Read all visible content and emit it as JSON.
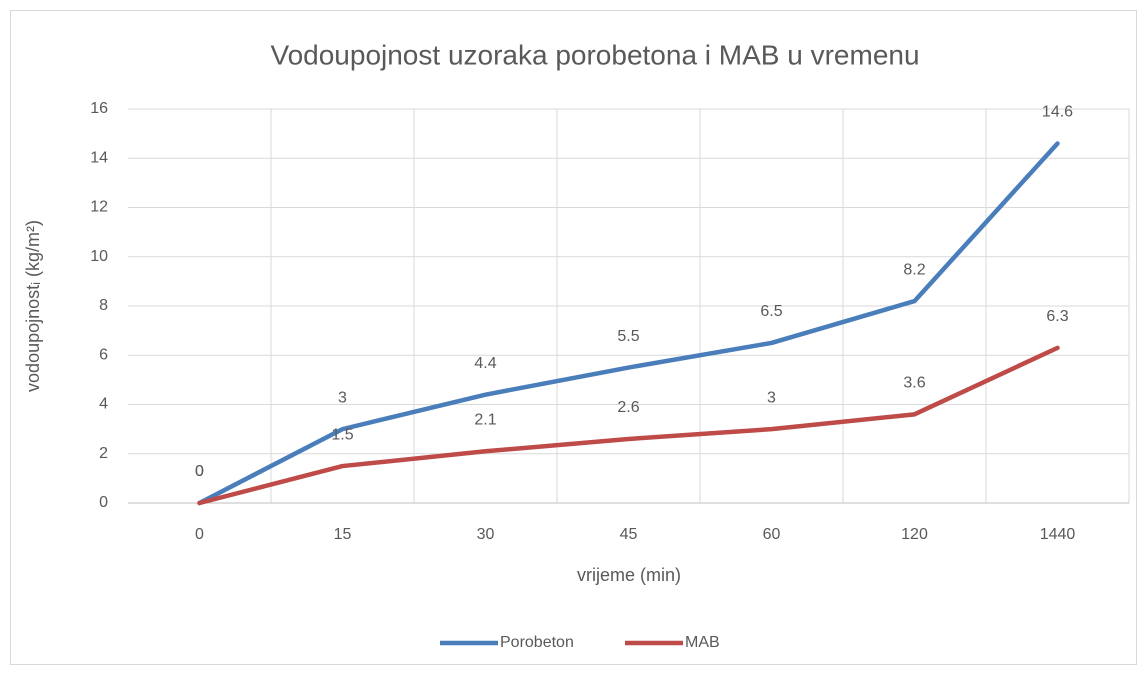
{
  "chart_data": {
    "type": "line",
    "title": "Vodoupojnost uzoraka porobetona i MAB u vremenu",
    "x_label": "vrijeme (min)",
    "y_label": "vodoupojnostᵢ (kg/m²)",
    "categories": [
      "0",
      "15",
      "30",
      "45",
      "60",
      "120",
      "1440"
    ],
    "series": [
      {
        "name": "Porobeton",
        "color": "#4a7ebb",
        "values": [
          0,
          3,
          4.4,
          5.5,
          6.5,
          8.2,
          14.6
        ]
      },
      {
        "name": "MAB",
        "color": "#be4b48",
        "values": [
          0,
          1.5,
          2.1,
          2.6,
          3,
          3.6,
          6.3
        ]
      }
    ],
    "ylim": [
      0,
      16
    ],
    "yticks": [
      0,
      2,
      4,
      6,
      8,
      10,
      12,
      14,
      16
    ],
    "grid": true,
    "legend": "bottom"
  }
}
